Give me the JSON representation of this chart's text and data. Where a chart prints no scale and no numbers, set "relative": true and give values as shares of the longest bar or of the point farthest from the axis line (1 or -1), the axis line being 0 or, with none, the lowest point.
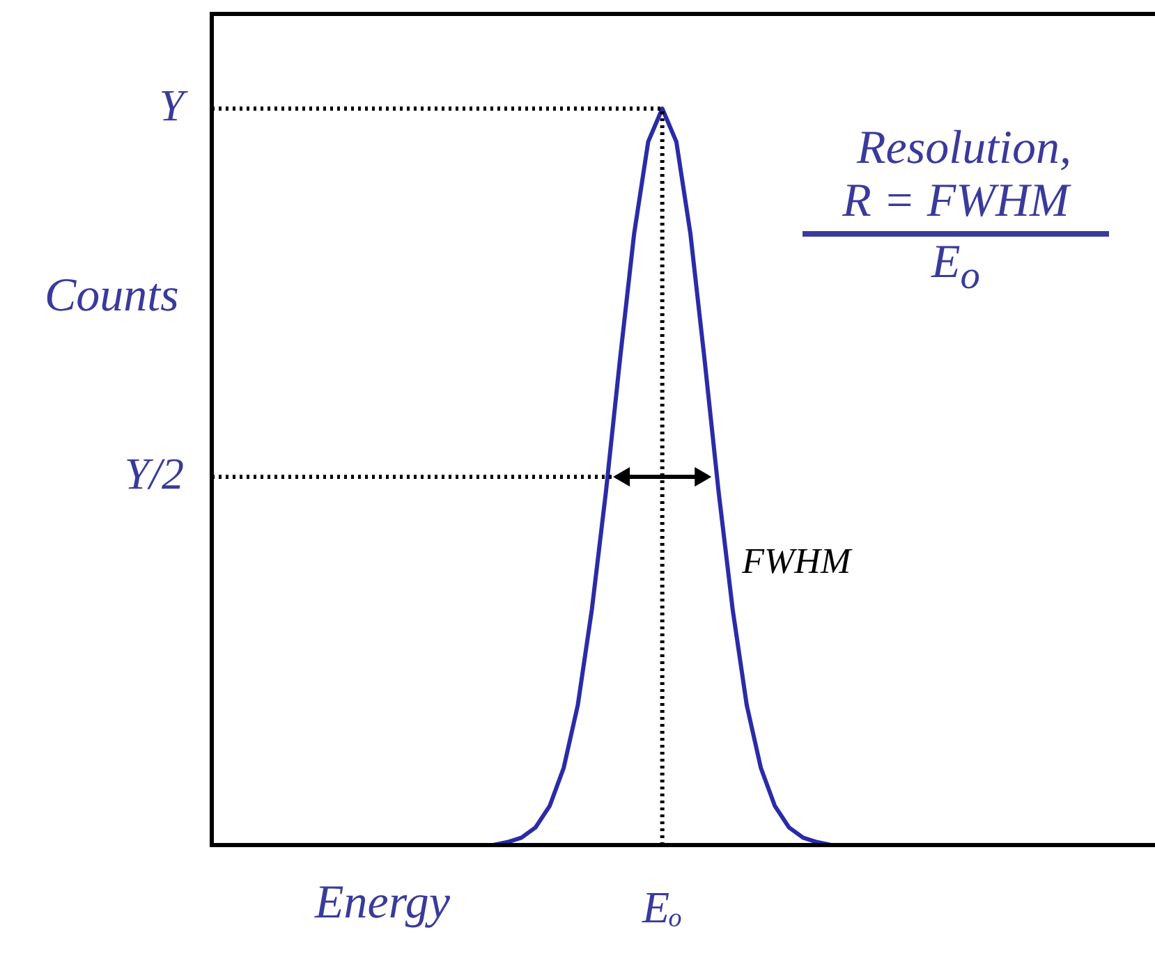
{
  "chart_data": {
    "type": "line",
    "xlabel": "Energy",
    "ylabel": "Counts",
    "relative": true,
    "categories": [
      null,
      null,
      null,
      null,
      null,
      null,
      null,
      null,
      null,
      null,
      null,
      null,
      null,
      null,
      null,
      null,
      null,
      null,
      null,
      null,
      null,
      null,
      null,
      null,
      null,
      null,
      null,
      null,
      null,
      null,
      null,
      null,
      null,
      null,
      null,
      null,
      null,
      null,
      null,
      null,
      null,
      null,
      null,
      null,
      null,
      null,
      null,
      null,
      null,
      null,
      null,
      null,
      null,
      null,
      null,
      null,
      null,
      null,
      null,
      null,
      null,
      null,
      null,
      null,
      null,
      null,
      null,
      null
    ],
    "series": [
      {
        "color": "#2b2ba8",
        "values": [
          null,
          null,
          null,
          null,
          null,
          null,
          null,
          null,
          null,
          null,
          null,
          null,
          null,
          null,
          null,
          null,
          null,
          null,
          null,
          null,
          0,
          0.004,
          0.01,
          0.024,
          0.053,
          0.105,
          0.19,
          0.32,
          0.48,
          0.66,
          0.83,
          0.955,
          1,
          0.955,
          0.83,
          0.66,
          0.48,
          0.32,
          0.19,
          0.105,
          0.053,
          0.024,
          0.01,
          0.004,
          0,
          null,
          null,
          null,
          null,
          null,
          null,
          null,
          null,
          null,
          null,
          null,
          null,
          null,
          null,
          null,
          null,
          null,
          null,
          null,
          null,
          null,
          null,
          null
        ]
      }
    ],
    "grid": false,
    "legend": false,
    "marker": "none",
    "line_style": "solid",
    "ref_lines": [
      {
        "axis": "y",
        "value": 1,
        "label": "Y",
        "line_style": "dotted",
        "color": "#000000"
      },
      {
        "axis": "y",
        "value": 0.5,
        "label": "Y/2",
        "line_style": "dotted",
        "color": "#000000"
      },
      {
        "axis": "x",
        "label": "Eₒ",
        "line_style": "dotted",
        "color": "#000000"
      }
    ],
    "annotations": [
      "Resolution,",
      "R = FWHM",
      "E$_{o}$",
      "FWHM"
    ]
  }
}
